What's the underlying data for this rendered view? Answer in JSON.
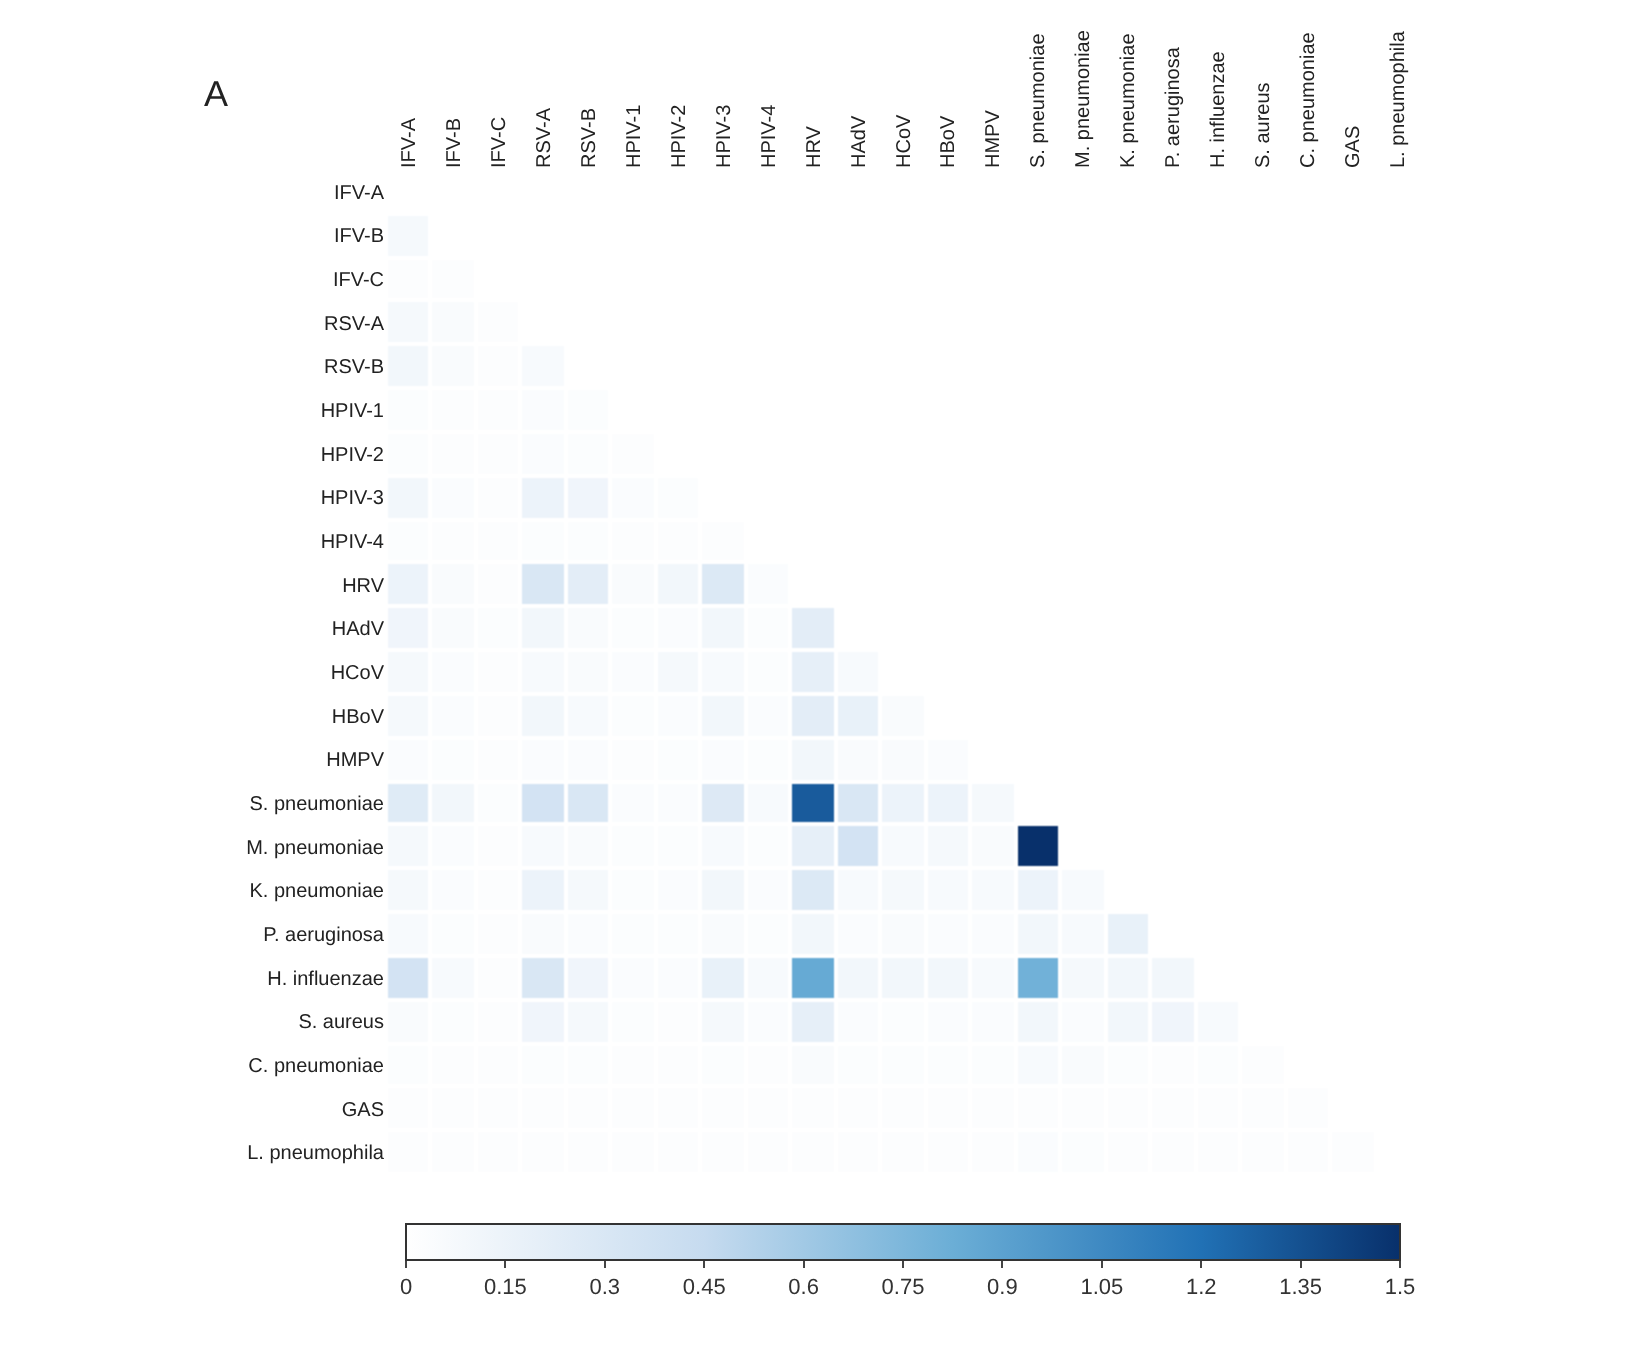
{
  "chart_data": {
    "type": "heatmap",
    "title": "A",
    "categories": [
      "IFV-A",
      "IFV-B",
      "IFV-C",
      "RSV-A",
      "RSV-B",
      "HPIV-1",
      "HPIV-2",
      "HPIV-3",
      "HPIV-4",
      "HRV",
      "HAdV",
      "HCoV",
      "HBoV",
      "HMPV",
      "S. pneumoniae",
      "M. pneumoniae",
      "K. pneumoniae",
      "P. aeruginosa",
      "H. influenzae",
      "S. aureus",
      "C. pneumoniae",
      "GAS",
      "L. pneumophila"
    ],
    "y_categories": [
      "IFV-A",
      "IFV-B",
      "IFV-C",
      "RSV-A",
      "RSV-B",
      "HPIV-1",
      "HPIV-2",
      "HPIV-3",
      "HPIV-4",
      "HRV",
      "HAdV",
      "HCoV",
      "HBoV",
      "HMPV",
      "S. pneumoniae",
      "M. pneumoniae",
      "K. pneumoniae",
      "P. aeruginosa",
      "H. influenzae",
      "S. aureus",
      "C. pneumoniae",
      "GAS",
      "L. pneumophila"
    ],
    "cells": [
      [
        null,
        null,
        null,
        null,
        null,
        null,
        null,
        null,
        null,
        null,
        null,
        null,
        null,
        null,
        null,
        null,
        null,
        null,
        null,
        null,
        null,
        null,
        null
      ],
      [
        0.08,
        null,
        null,
        null,
        null,
        null,
        null,
        null,
        null,
        null,
        null,
        null,
        null,
        null,
        null,
        null,
        null,
        null,
        null,
        null,
        null,
        null,
        null
      ],
      [
        0.02,
        0.02,
        null,
        null,
        null,
        null,
        null,
        null,
        null,
        null,
        null,
        null,
        null,
        null,
        null,
        null,
        null,
        null,
        null,
        null,
        null,
        null,
        null
      ],
      [
        0.08,
        0.05,
        0.02,
        null,
        null,
        null,
        null,
        null,
        null,
        null,
        null,
        null,
        null,
        null,
        null,
        null,
        null,
        null,
        null,
        null,
        null,
        null,
        null
      ],
      [
        0.1,
        0.05,
        0.02,
        0.06,
        null,
        null,
        null,
        null,
        null,
        null,
        null,
        null,
        null,
        null,
        null,
        null,
        null,
        null,
        null,
        null,
        null,
        null,
        null
      ],
      [
        0.03,
        0.02,
        0.02,
        0.04,
        0.03,
        null,
        null,
        null,
        null,
        null,
        null,
        null,
        null,
        null,
        null,
        null,
        null,
        null,
        null,
        null,
        null,
        null,
        null
      ],
      [
        0.03,
        0.02,
        0.02,
        0.04,
        0.03,
        0.02,
        null,
        null,
        null,
        null,
        null,
        null,
        null,
        null,
        null,
        null,
        null,
        null,
        null,
        null,
        null,
        null,
        null
      ],
      [
        0.1,
        0.04,
        0.02,
        0.15,
        0.12,
        0.04,
        0.03,
        null,
        null,
        null,
        null,
        null,
        null,
        null,
        null,
        null,
        null,
        null,
        null,
        null,
        null,
        null,
        null
      ],
      [
        0.03,
        0.02,
        0.02,
        0.03,
        0.03,
        0.02,
        0.02,
        0.02,
        null,
        null,
        null,
        null,
        null,
        null,
        null,
        null,
        null,
        null,
        null,
        null,
        null,
        null,
        null
      ],
      [
        0.15,
        0.05,
        0.02,
        0.3,
        0.22,
        0.05,
        0.1,
        0.28,
        0.04,
        null,
        null,
        null,
        null,
        null,
        null,
        null,
        null,
        null,
        null,
        null,
        null,
        null,
        null
      ],
      [
        0.12,
        0.05,
        0.03,
        0.1,
        0.05,
        0.03,
        0.04,
        0.1,
        0.03,
        0.22,
        null,
        null,
        null,
        null,
        null,
        null,
        null,
        null,
        null,
        null,
        null,
        null,
        null
      ],
      [
        0.08,
        0.04,
        0.02,
        0.06,
        0.05,
        0.04,
        0.08,
        0.06,
        0.03,
        0.2,
        0.06,
        null,
        null,
        null,
        null,
        null,
        null,
        null,
        null,
        null,
        null,
        null,
        null
      ],
      [
        0.08,
        0.04,
        0.02,
        0.1,
        0.06,
        0.03,
        0.04,
        0.1,
        0.04,
        0.22,
        0.18,
        0.05,
        null,
        null,
        null,
        null,
        null,
        null,
        null,
        null,
        null,
        null,
        null
      ],
      [
        0.04,
        0.03,
        0.02,
        0.04,
        0.04,
        0.02,
        0.03,
        0.04,
        0.03,
        0.1,
        0.05,
        0.05,
        0.04,
        null,
        null,
        null,
        null,
        null,
        null,
        null,
        null,
        null,
        null
      ],
      [
        0.25,
        0.1,
        0.03,
        0.35,
        0.3,
        0.04,
        0.04,
        0.27,
        0.06,
        1.3,
        0.3,
        0.15,
        0.15,
        0.08,
        null,
        null,
        null,
        null,
        null,
        null,
        null,
        null,
        null
      ],
      [
        0.08,
        0.04,
        0.02,
        0.06,
        0.05,
        0.03,
        0.03,
        0.06,
        0.03,
        0.2,
        0.35,
        0.06,
        0.08,
        0.05,
        1.5,
        null,
        null,
        null,
        null,
        null,
        null,
        null,
        null
      ],
      [
        0.08,
        0.04,
        0.02,
        0.15,
        0.08,
        0.03,
        0.04,
        0.1,
        0.04,
        0.28,
        0.06,
        0.08,
        0.06,
        0.06,
        0.15,
        0.06,
        null,
        null,
        null,
        null,
        null,
        null,
        null
      ],
      [
        0.06,
        0.03,
        0.02,
        0.05,
        0.04,
        0.03,
        0.03,
        0.05,
        0.03,
        0.1,
        0.04,
        0.05,
        0.04,
        0.04,
        0.1,
        0.06,
        0.18,
        null,
        null,
        null,
        null,
        null,
        null
      ],
      [
        0.35,
        0.06,
        0.02,
        0.3,
        0.12,
        0.04,
        0.04,
        0.18,
        0.06,
        0.85,
        0.1,
        0.1,
        0.1,
        0.06,
        0.8,
        0.08,
        0.1,
        0.1,
        null,
        null,
        null,
        null,
        null
      ],
      [
        0.05,
        0.03,
        0.02,
        0.12,
        0.08,
        0.03,
        0.02,
        0.08,
        0.04,
        0.2,
        0.04,
        0.03,
        0.04,
        0.04,
        0.1,
        0.04,
        0.1,
        0.12,
        0.06,
        null,
        null,
        null,
        null
      ],
      [
        0.03,
        0.02,
        0.02,
        0.03,
        0.03,
        0.02,
        0.02,
        0.03,
        0.02,
        0.05,
        0.03,
        0.03,
        0.03,
        0.03,
        0.06,
        0.05,
        0.03,
        0.02,
        0.03,
        0.02,
        null,
        null,
        null
      ],
      [
        0.02,
        0.02,
        0.02,
        0.02,
        0.02,
        0.02,
        0.02,
        0.02,
        0.02,
        0.02,
        0.02,
        0.02,
        0.02,
        0.02,
        0.02,
        0.02,
        0.02,
        0.02,
        0.02,
        0.02,
        0.02,
        null,
        null
      ],
      [
        0.02,
        0.02,
        0.02,
        0.02,
        0.02,
        0.02,
        0.02,
        0.02,
        0.02,
        0.02,
        0.02,
        0.02,
        0.02,
        0.02,
        0.04,
        0.03,
        0.02,
        0.02,
        0.02,
        0.02,
        0.02,
        0.02,
        null
      ]
    ],
    "clim": [
      0,
      1.5
    ],
    "cticks": [
      0,
      0.15,
      0.3,
      0.45,
      0.6,
      0.75,
      0.9,
      1.05,
      1.2,
      1.35,
      1.5
    ]
  }
}
